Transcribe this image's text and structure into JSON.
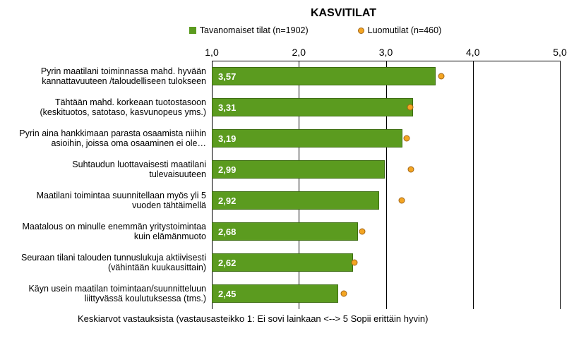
{
  "title": "KASVITILAT",
  "title_fontsize": 16,
  "legend": {
    "series1": {
      "label": "Tavanomaiset tilat (n=1902)",
      "color": "#5b9b1f"
    },
    "series2": {
      "label": "Luomutilat (n=460)",
      "fill": "#f4a522",
      "border": "#a0651a"
    }
  },
  "axis": {
    "min": 1.0,
    "max": 5.0,
    "ticks": [
      1.0,
      2.0,
      3.0,
      4.0,
      5.0
    ],
    "tick_labels": [
      "1,0",
      "2,0",
      "3,0",
      "4,0",
      "5,0"
    ],
    "tick_fontsize": 14
  },
  "label_fontsize": 12.5,
  "barlabel_fontsize": 13,
  "rows": [
    {
      "label_lines": [
        "Pyrin maatilani toiminnassa mahd. hyvään",
        "kannattavuuteen /taloudelliseen tulokseen"
      ],
      "bar_value": 3.57,
      "bar_label": "3,57",
      "marker_value": 3.64
    },
    {
      "label_lines": [
        "Tähtään mahd. korkeaan tuotostasoon",
        "(keskituotos, satotaso, kasvunopeus yms.)"
      ],
      "bar_value": 3.31,
      "bar_label": "3,31",
      "marker_value": 3.28
    },
    {
      "label_lines": [
        "Pyrin aina hankkimaan parasta osaamista niihin",
        "asioihin, joissa oma osaaminen ei ole…"
      ],
      "bar_value": 3.19,
      "bar_label": "3,19",
      "marker_value": 3.24
    },
    {
      "label_lines": [
        "Suhtaudun luottavaisesti maatilani",
        "tulevaisuuteen"
      ],
      "bar_value": 2.99,
      "bar_label": "2,99",
      "marker_value": 3.29
    },
    {
      "label_lines": [
        "Maatilani toimintaa suunnitellaan myös yli 5",
        "vuoden tähtäimellä"
      ],
      "bar_value": 2.92,
      "bar_label": "2,92",
      "marker_value": 3.18
    },
    {
      "label_lines": [
        "Maatalous on minulle enemmän yritystoimintaa",
        "kuin elämänmuoto"
      ],
      "bar_value": 2.68,
      "bar_label": "2,68",
      "marker_value": 2.73
    },
    {
      "label_lines": [
        "Seuraan tilani talouden tunnuslukuja aktiivisesti",
        "(vähintään kuukausittain)"
      ],
      "bar_value": 2.62,
      "bar_label": "2,62",
      "marker_value": 2.64
    },
    {
      "label_lines": [
        "Käyn usein maatilan toimintaan/suunnitteluun",
        "liittyvässä koulutuksessa (tms.)"
      ],
      "bar_value": 2.45,
      "bar_label": "2,45",
      "marker_value": 2.52
    }
  ],
  "footnote": "Keskiarvot vastauksista (vastausasteikko 1: Ei sovi lainkaan  <--> 5 Sopii erittäin hyvin)",
  "footnote_fontsize": 13,
  "colors": {
    "bar_fill": "#5b9b1f",
    "bar_border": "#3e6e12",
    "marker_fill": "#f4a522",
    "marker_border": "#a0651a",
    "grid": "#000000",
    "background": "#ffffff",
    "bar_text": "#ffffff"
  }
}
